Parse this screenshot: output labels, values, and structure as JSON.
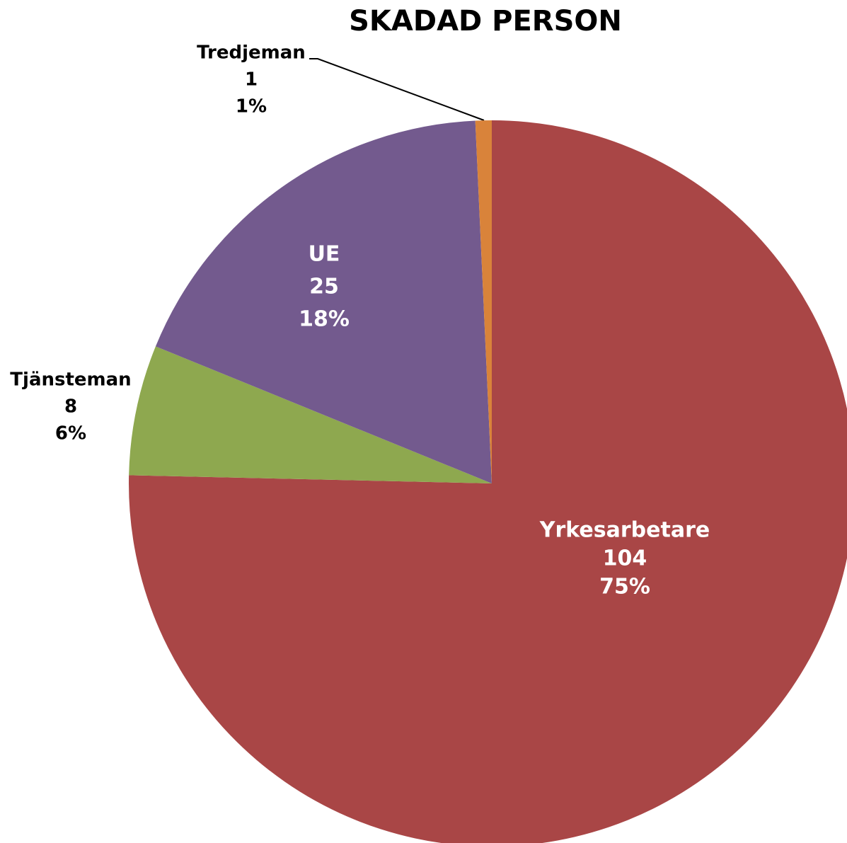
{
  "chart_data": {
    "type": "pie",
    "title": "SKADAD PERSON",
    "categories": [
      "Yrkesarbetare",
      "Tjänsteman",
      "UE",
      "Tredjeman"
    ],
    "values": [
      104,
      8,
      25,
      1
    ],
    "percent_labels": [
      "75%",
      "6%",
      "18%",
      "1%"
    ],
    "colors": [
      "#a94646",
      "#8ea84f",
      "#735a8e",
      "#d9833a"
    ]
  }
}
